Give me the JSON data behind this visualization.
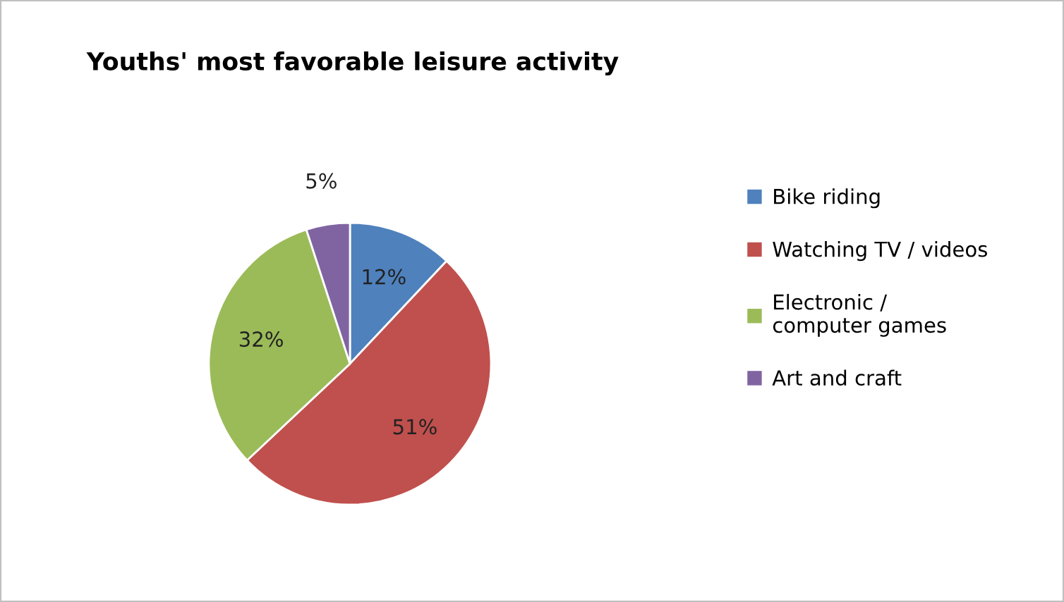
{
  "chart_data": {
    "type": "pie",
    "title": "Youths' most favorable leisure activity",
    "categories": [
      "Bike riding",
      "Watching TV / videos",
      "Electronic /\ncomputer games",
      "Art and craft"
    ],
    "values": [
      12,
      51,
      32,
      5
    ],
    "colors": [
      "#4f81bd",
      "#c0504d",
      "#9bbb59",
      "#8064a2"
    ],
    "value_labels": [
      "12%",
      "51%",
      "32%",
      "5%"
    ],
    "legend": "right"
  }
}
